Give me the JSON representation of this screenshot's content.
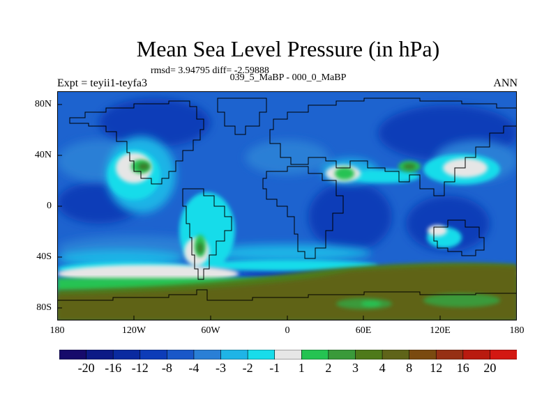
{
  "title": "Mean Sea Level Pressure (in hPa)",
  "stats": "rmsd= 3.94795 diff= -2.59888",
  "subtitle": "039_5_MaBP - 000_0_MaBP",
  "experiment": "Expt = teyii1-teyfa3",
  "period": "ANN",
  "lat_labels": [
    "80N",
    "40N",
    "0",
    "40S",
    "80S"
  ],
  "lon_labels": [
    "180",
    "120W",
    "60W",
    "0",
    "60E",
    "120E",
    "180"
  ],
  "colorbar": {
    "labels": [
      "-20",
      "-16",
      "-12",
      "-8",
      "-4",
      "-3",
      "-2",
      "-1",
      "1",
      "2",
      "3",
      "4",
      "8",
      "12",
      "16",
      "20"
    ],
    "colors": [
      "#160a6b",
      "#0c1a86",
      "#0a2aa0",
      "#0d3cb8",
      "#1957c8",
      "#2a7fd6",
      "#1fb4e6",
      "#18dcea",
      "#e6e6e6",
      "#25c352",
      "#3a9a3a",
      "#4e7a1a",
      "#5f6419",
      "#7a4a10",
      "#963014",
      "#b91b0f",
      "#d31812"
    ]
  },
  "map_colors": {
    "ocean_base": "#1d63cf",
    "deep_blue": "#0d3cb8",
    "mid_blue": "#2a7fd6",
    "light_blue": "#1fb4e6",
    "cyan": "#18dcea",
    "neutral": "#e6e6e6",
    "green": "#25c352",
    "olive": "#4e7a1a",
    "brown": "#5f6419",
    "dark_green": "#3a7a2a"
  }
}
